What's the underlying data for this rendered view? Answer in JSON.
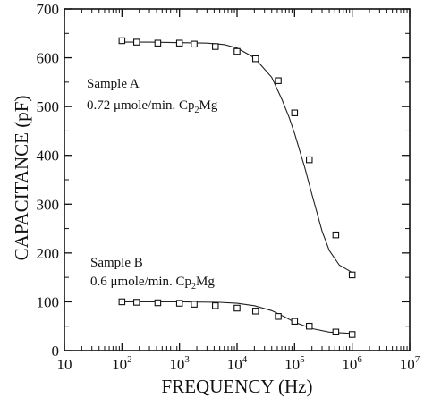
{
  "chart_data": {
    "type": "scatter",
    "title": "",
    "xlabel": "FREQUENCY (Hz)",
    "ylabel": "CAPACITANCE (pF)",
    "xscale": "log",
    "xlim": [
      10,
      10000000
    ],
    "ylim": [
      0,
      700
    ],
    "x_ticks": [
      {
        "base": "10",
        "exp": ""
      },
      {
        "base": "10",
        "exp": "2"
      },
      {
        "base": "10",
        "exp": "3"
      },
      {
        "base": "10",
        "exp": "4"
      },
      {
        "base": "10",
        "exp": "5"
      },
      {
        "base": "10",
        "exp": "6"
      },
      {
        "base": "10",
        "exp": "7"
      }
    ],
    "y_ticks": [
      "0",
      "100",
      "200",
      "300",
      "400",
      "500",
      "600",
      "700"
    ],
    "grid": false,
    "legend": "none",
    "annotations": [
      {
        "line1": "Sample A",
        "line2_prefix": "0.72 μmole/min. Cp",
        "line2_sub": "2",
        "line2_suffix": "Mg"
      },
      {
        "line1": "Sample B",
        "line2_prefix": "0.6 μmole/min. Cp",
        "line2_sub": "2",
        "line2_suffix": "Mg"
      }
    ],
    "series": [
      {
        "kind": "points",
        "marker": "open-square",
        "x": [
          100,
          180,
          420,
          1000,
          1800,
          4200,
          10000,
          21000,
          52000,
          100000,
          180000,
          520000,
          1000000
        ],
        "y": [
          635,
          632,
          630,
          630,
          628,
          623,
          613,
          598,
          553,
          487,
          391,
          237,
          155
        ]
      },
      {
        "kind": "fit-line",
        "x": [
          100,
          300,
          1000,
          3000,
          6000,
          10000,
          20000,
          40000,
          60000,
          80000,
          100000,
          150000,
          200000,
          300000,
          400000,
          600000,
          1000000
        ],
        "y": [
          632,
          632,
          631,
          630,
          627,
          620,
          600,
          560,
          515,
          478,
          445,
          375,
          320,
          245,
          205,
          175,
          160
        ]
      },
      {
        "kind": "points",
        "marker": "open-square",
        "x": [
          100,
          180,
          420,
          1000,
          1800,
          4200,
          10000,
          21000,
          52000,
          100000,
          180000,
          520000,
          1000000
        ],
        "y": [
          100,
          99,
          98,
          97,
          95,
          92,
          87,
          81,
          70,
          60,
          50,
          38,
          33
        ]
      },
      {
        "kind": "fit-line",
        "x": [
          100,
          1000,
          5000,
          10000,
          20000,
          40000,
          70000,
          100000,
          200000,
          400000,
          1000000
        ],
        "y": [
          100,
          100,
          99,
          97,
          92,
          82,
          68,
          58,
          45,
          38,
          35
        ]
      }
    ]
  }
}
